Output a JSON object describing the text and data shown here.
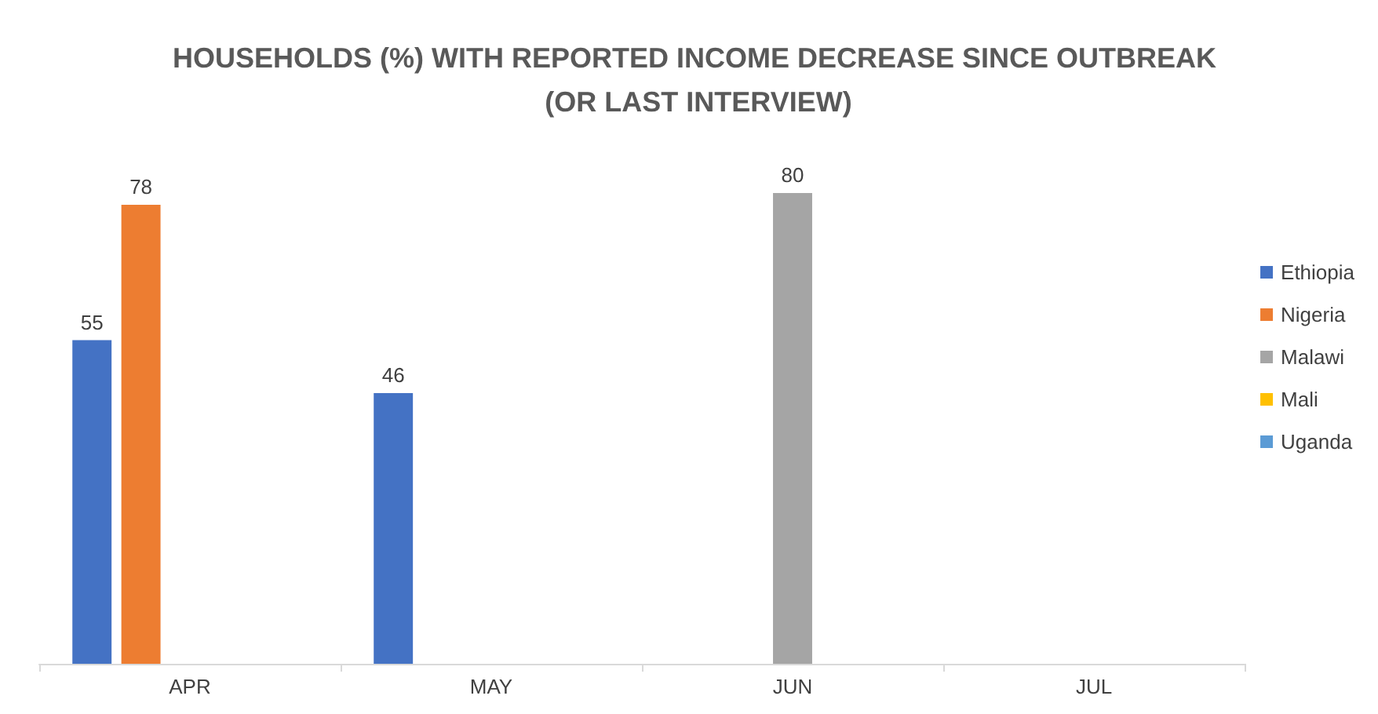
{
  "chart_data": {
    "type": "bar",
    "title": "HOUSEHOLDS (%) WITH REPORTED INCOME DECREASE SINCE OUTBREAK (OR LAST INTERVIEW)",
    "categories": [
      "APR",
      "MAY",
      "JUN",
      "JUL"
    ],
    "series": [
      {
        "name": "Ethiopia",
        "color": "#4472c4",
        "values": [
          55,
          46,
          null,
          null
        ]
      },
      {
        "name": "Nigeria",
        "color": "#ed7d31",
        "values": [
          78,
          null,
          null,
          null
        ]
      },
      {
        "name": "Malawi",
        "color": "#a5a5a5",
        "values": [
          null,
          null,
          80,
          null
        ]
      },
      {
        "name": "Mali",
        "color": "#ffc000",
        "values": [
          null,
          null,
          null,
          null
        ]
      },
      {
        "name": "Uganda",
        "color": "#5b9bd5",
        "values": [
          null,
          null,
          null,
          null
        ]
      }
    ],
    "data_labels": true,
    "grid": false,
    "legend": "right"
  }
}
